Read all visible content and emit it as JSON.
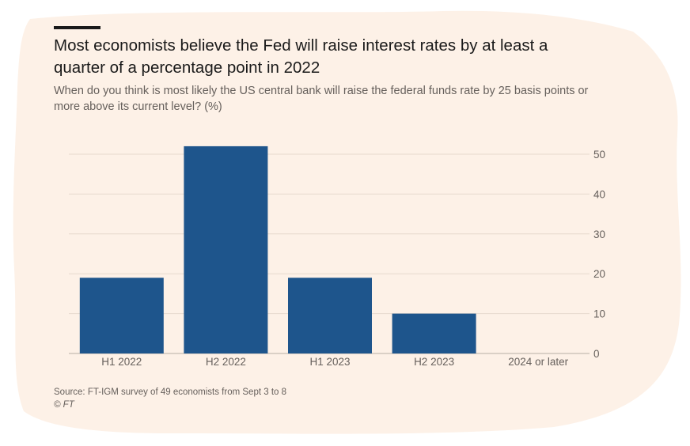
{
  "colors": {
    "background": "#fdf1e7",
    "bar": "#1e558c",
    "grid": "#e6d9ce",
    "text_muted": "#66605c",
    "text_main": "#1a1a1a"
  },
  "title": "Most economists believe the Fed will raise interest rates by at least a quarter of a percentage point in 2022",
  "subtitle": "When do you think is most likely the US central bank will raise the federal funds rate by 25 basis points or more above its current level? (%)",
  "source": "Source: FT-IGM survey of 49 economists from Sept 3 to 8",
  "copyright": "© FT",
  "chart_data": {
    "type": "bar",
    "title": "Most economists believe the Fed will raise interest rates by at least a quarter of a percentage point in 2022",
    "xlabel": "",
    "ylabel": "",
    "categories": [
      "H1 2022",
      "H2 2022",
      "H1 2023",
      "H2 2023",
      "2024 or later"
    ],
    "values": [
      19,
      52,
      19,
      10,
      0
    ],
    "ylim": [
      0,
      50
    ],
    "yticks": [
      0,
      10,
      20,
      30,
      40,
      50
    ],
    "y_axis_side": "right",
    "grid": true,
    "legend": "none"
  }
}
